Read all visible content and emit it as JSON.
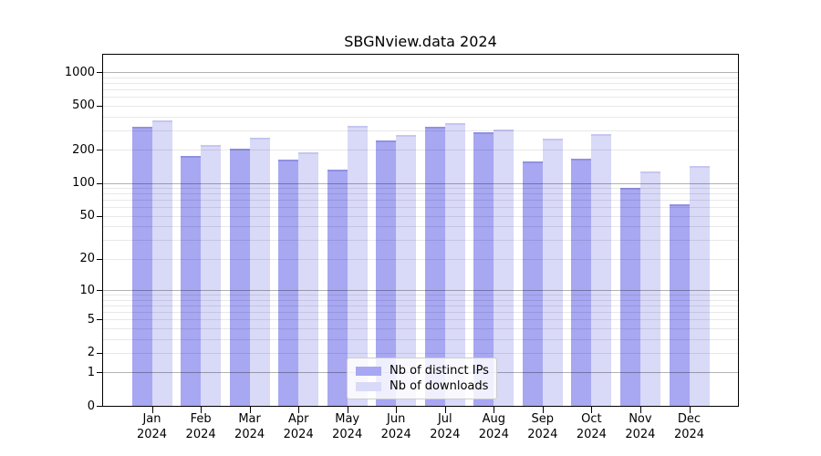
{
  "title": "SBGNview.data 2024",
  "chart_data": {
    "type": "bar",
    "title": "SBGNview.data 2024",
    "categories": [
      "Jan",
      "Feb",
      "Mar",
      "Apr",
      "May",
      "Jun",
      "Jul",
      "Aug",
      "Sep",
      "Oct",
      "Nov",
      "Dec"
    ],
    "year_label": "2024",
    "series": [
      {
        "name": "Nb of distinct IPs",
        "color": "#a7a7f2",
        "edge_color": "#9191e2",
        "values": [
          325,
          175,
          203,
          164,
          132,
          241,
          320,
          287,
          156,
          165,
          91,
          64
        ]
      },
      {
        "name": "Nb of downloads",
        "color": "#d9d9f8",
        "edge_color": "#c6c6f0",
        "values": [
          369,
          220,
          256,
          188,
          328,
          273,
          347,
          306,
          251,
          275,
          126,
          143
        ]
      }
    ],
    "y_axis": {
      "scale": "log1p",
      "ticks": [
        0,
        1,
        2,
        5,
        10,
        20,
        50,
        100,
        200,
        500,
        1000
      ],
      "major_gridlines": [
        1,
        10,
        100,
        1000
      ],
      "top_value": 1433,
      "ylim": [
        0,
        1433
      ]
    },
    "x_axis": {
      "label": ""
    },
    "legend": {
      "position": "lower-center",
      "entries": [
        "Nb of distinct IPs",
        "Nb of downloads"
      ]
    },
    "grid": "on"
  }
}
